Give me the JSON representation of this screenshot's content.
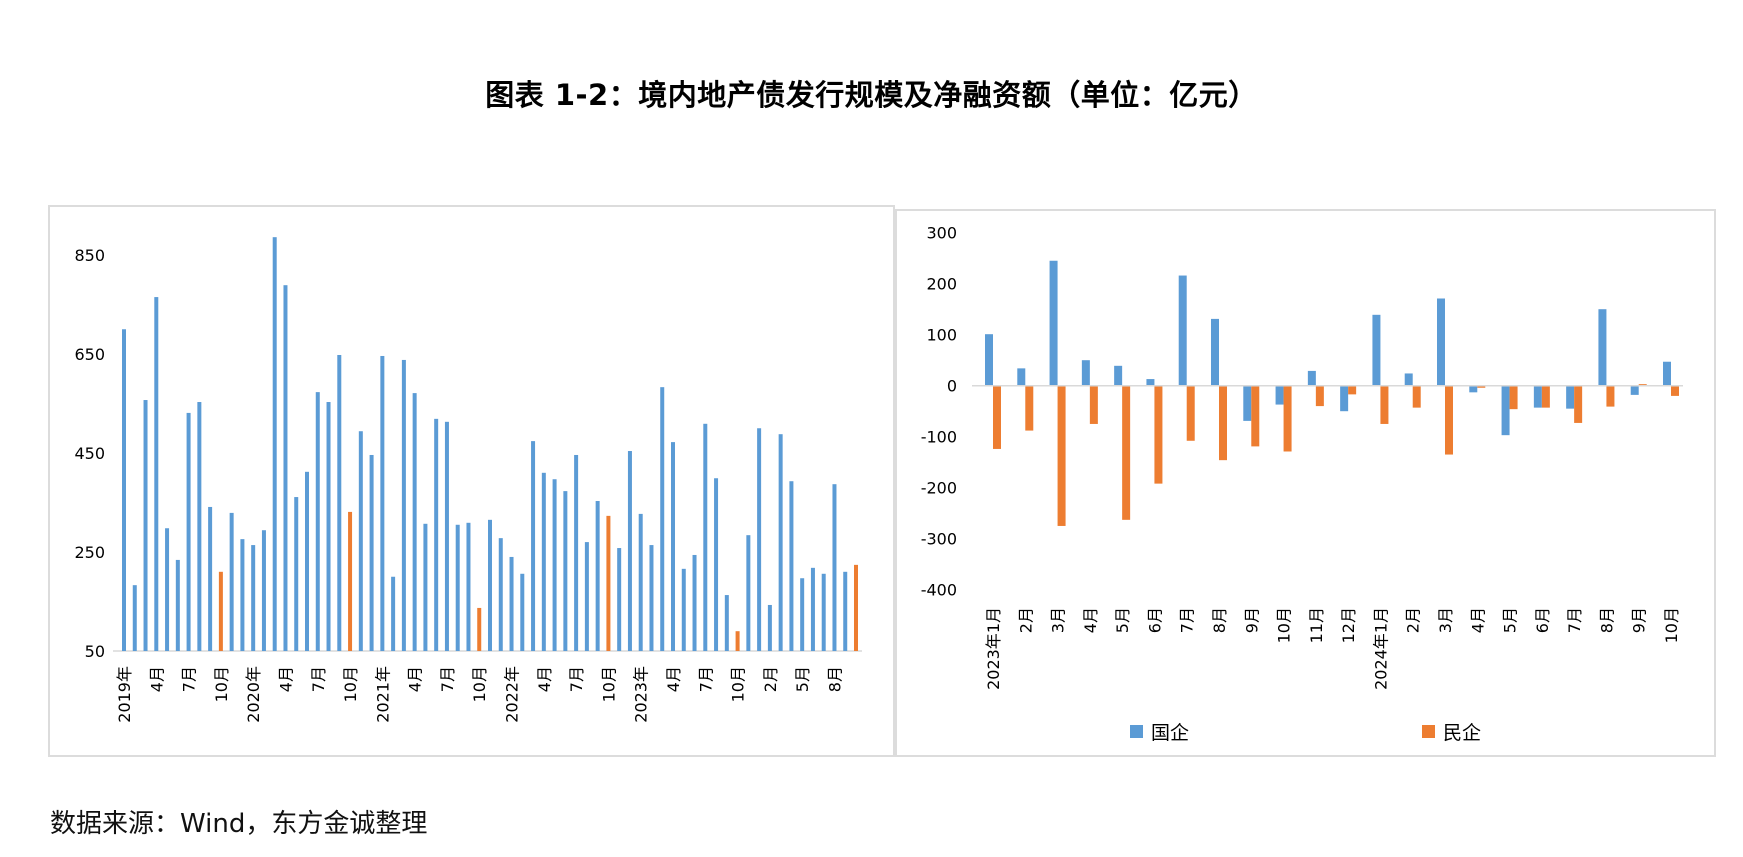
{
  "title": "图表 1-2：境内地产债发行规模及净融资额（单位：亿元）",
  "source": "数据来源：Wind，东方金诚整理",
  "colors": {
    "blue": "#5b9bd5",
    "orange": "#ed7d31",
    "axis": "#d9d9d9",
    "border": "#dcdcdc"
  },
  "chart_data": [
    {
      "type": "bar",
      "title": "境内地产债发行规模（亿元）",
      "xlabel": "",
      "ylabel": "",
      "ylim": [
        50,
        900
      ],
      "yticks": [
        850,
        650,
        450,
        250,
        50
      ],
      "grid": false,
      "legend": null,
      "highlight_note": "October bars shown in orange",
      "x_tick_labels": [
        "2019年",
        "4月",
        "7月",
        "10月",
        "2020年",
        "4月",
        "7月",
        "10月",
        "2021年",
        "4月",
        "7月",
        "10月",
        "2022年",
        "4月",
        "7月",
        "10月",
        "2023年",
        "4月",
        "7月",
        "10月",
        "2月",
        "5月",
        "8月"
      ],
      "x_tick_index": [
        0,
        3,
        6,
        9,
        12,
        15,
        18,
        21,
        24,
        27,
        30,
        33,
        36,
        39,
        42,
        45,
        48,
        51,
        54,
        57,
        60,
        63,
        66
      ],
      "categories": [
        "2019-01",
        "2019-02",
        "2019-03",
        "2019-04",
        "2019-05",
        "2019-06",
        "2019-07",
        "2019-08",
        "2019-09",
        "2019-10",
        "2019-11",
        "2019-12",
        "2020-01",
        "2020-02",
        "2020-03",
        "2020-04",
        "2020-05",
        "2020-06",
        "2020-07",
        "2020-08",
        "2020-09",
        "2020-10",
        "2020-11",
        "2020-12",
        "2021-01",
        "2021-02",
        "2021-03",
        "2021-04",
        "2021-05",
        "2021-06",
        "2021-07",
        "2021-08",
        "2021-09",
        "2021-10",
        "2021-11",
        "2021-12",
        "2022-01",
        "2022-02",
        "2022-03",
        "2022-04",
        "2022-05",
        "2022-06",
        "2022-07",
        "2022-08",
        "2022-09",
        "2022-10",
        "2022-11",
        "2022-12",
        "2023-01",
        "2023-02",
        "2023-03",
        "2023-04",
        "2023-05",
        "2023-06",
        "2023-07",
        "2023-08",
        "2023-09",
        "2023-10",
        "2023-11",
        "2023-12",
        "2024-02",
        "2024-03",
        "2024-04",
        "2024-05",
        "2024-06",
        "2024-07",
        "2024-08",
        "2024-09",
        "2024-10"
      ],
      "values": [
        700,
        183,
        557,
        765,
        298,
        234,
        531,
        553,
        341,
        210,
        329,
        276,
        264,
        294,
        886,
        789,
        361,
        412,
        573,
        553,
        648,
        331,
        494,
        446,
        646,
        200,
        638,
        571,
        307,
        519,
        513,
        305,
        309,
        137,
        315,
        278,
        240,
        206,
        474,
        410,
        397,
        373,
        446,
        270,
        353,
        323,
        258,
        454,
        327,
        264,
        583,
        472,
        216,
        244,
        509,
        399,
        163,
        90,
        284,
        500,
        143,
        488,
        393,
        197,
        218,
        206,
        387,
        210,
        224
      ],
      "highlight_indices": [
        9,
        21,
        33,
        45,
        57,
        68
      ]
    },
    {
      "type": "bar",
      "title": "境内地产债净融资额（亿元）",
      "xlabel": "",
      "ylabel": "",
      "ylim": [
        -400,
        300
      ],
      "yticks": [
        300,
        200,
        100,
        0,
        -100,
        -200,
        -300,
        -400
      ],
      "grid": false,
      "legend": "bottom",
      "categories": [
        "2023年1月",
        "2月",
        "3月",
        "4月",
        "5月",
        "6月",
        "7月",
        "8月",
        "9月",
        "10月",
        "11月",
        "12月",
        "2024年1月",
        "2月",
        "3月",
        "4月",
        "5月",
        "6月",
        "7月",
        "8月",
        "9月",
        "10月"
      ],
      "series": [
        {
          "name": "国企",
          "color": "#5b9bd5",
          "values": [
            101,
            34,
            245,
            50,
            39,
            13,
            216,
            131,
            -69,
            -37,
            29,
            -50,
            139,
            24,
            171,
            -13,
            -97,
            -43,
            -45,
            150,
            -18,
            47
          ]
        },
        {
          "name": "民企",
          "color": "#ed7d31",
          "values": [
            -124,
            -88,
            -275,
            -75,
            -263,
            -192,
            -108,
            -146,
            -119,
            -129,
            -40,
            -17,
            -75,
            -43,
            -135,
            -4,
            -46,
            -43,
            -73,
            -41,
            3,
            -20
          ]
        }
      ]
    }
  ],
  "legend": {
    "items": [
      {
        "label": "国企",
        "color": "#5b9bd5"
      },
      {
        "label": "民企",
        "color": "#ed7d31"
      }
    ]
  }
}
